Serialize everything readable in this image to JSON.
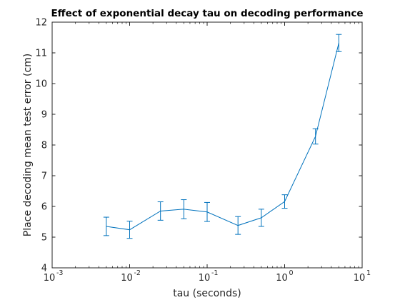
{
  "chart_data": {
    "type": "line",
    "title": "Effect of exponential decay tau on decoding performance",
    "xlabel": "tau (seconds)",
    "ylabel": "Place decoding mean test error (cm)",
    "x_scale": "log",
    "xlim": [
      0.001,
      10
    ],
    "ylim": [
      4,
      12
    ],
    "x_ticks": [
      {
        "value": 0.001,
        "base": "10",
        "exp": "-3"
      },
      {
        "value": 0.01,
        "base": "10",
        "exp": "-2"
      },
      {
        "value": 0.1,
        "base": "10",
        "exp": "-1"
      },
      {
        "value": 1,
        "base": "10",
        "exp": "0"
      },
      {
        "value": 10,
        "base": "10",
        "exp": "1"
      }
    ],
    "y_ticks": [
      "4",
      "5",
      "6",
      "7",
      "8",
      "9",
      "10",
      "11",
      "12"
    ],
    "grid": false,
    "legend": "none",
    "line_color": "#0072BD",
    "series": [
      {
        "x": [
          0.005,
          0.01,
          0.025,
          0.05,
          0.1,
          0.25,
          0.5,
          1,
          2.5,
          5
        ],
        "y": [
          5.35,
          5.24,
          5.85,
          5.91,
          5.82,
          5.38,
          5.63,
          6.16,
          8.28,
          11.32
        ],
        "err": [
          0.3,
          0.28,
          0.3,
          0.31,
          0.31,
          0.29,
          0.28,
          0.22,
          0.25,
          0.28
        ]
      }
    ]
  }
}
